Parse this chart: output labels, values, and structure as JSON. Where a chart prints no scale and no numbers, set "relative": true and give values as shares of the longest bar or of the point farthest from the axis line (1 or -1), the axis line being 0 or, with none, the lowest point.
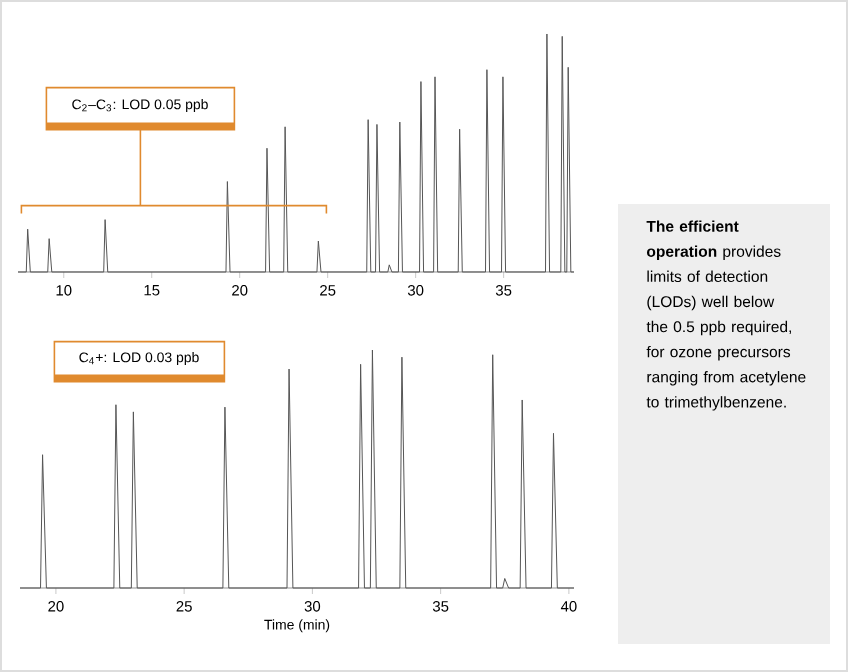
{
  "chart_data": [
    {
      "type": "line",
      "relative": true,
      "color": "#555555",
      "xlim": [
        7.4,
        39
      ],
      "xticks": [
        10,
        15,
        20,
        25,
        30,
        35
      ],
      "tick_labels": "x",
      "x": [
        7.4,
        7.87,
        7.95,
        8.1,
        9.09,
        9.17,
        9.32,
        12.27,
        12.35,
        12.5,
        19.22,
        19.3,
        19.45,
        21.47,
        21.55,
        21.7,
        22.5,
        22.58,
        22.73,
        24.39,
        24.47,
        24.62,
        27.22,
        27.3,
        27.45,
        27.72,
        27.8,
        27.95,
        28.42,
        28.5,
        28.65,
        29.02,
        29.1,
        29.25,
        30.22,
        30.3,
        30.45,
        31.02,
        31.1,
        31.25,
        32.42,
        32.5,
        32.65,
        33.97,
        34.05,
        34.2,
        34.88,
        34.96,
        35.11,
        37.38,
        37.46,
        37.61,
        38.25,
        38.33,
        38.48,
        38.59,
        38.67,
        38.82,
        39
      ],
      "values": [
        0,
        0,
        0.18,
        0,
        0,
        0.14,
        0,
        0,
        0.22,
        0,
        0,
        0.38,
        0,
        0,
        0.52,
        0,
        0,
        0.61,
        0,
        0,
        0.13,
        0,
        0,
        0.64,
        0,
        0,
        0.62,
        0,
        0,
        0.03,
        0,
        0,
        0.63,
        0,
        0,
        0.8,
        0,
        0,
        0.82,
        0,
        0,
        0.6,
        0,
        0,
        0.85,
        0,
        0,
        0.82,
        0,
        0,
        1,
        0,
        0,
        0.99,
        0,
        0,
        0.86,
        0,
        0
      ],
      "annotations": [
        "C$_{2}$–C$_{3}$: LOD 0.05 ppb"
      ]
    },
    {
      "type": "line",
      "relative": true,
      "color": "#555555",
      "xlim": [
        18.6,
        40.2
      ],
      "xticks": [
        20,
        25,
        30,
        35,
        40
      ],
      "tick_labels": "x",
      "xlabel": "Time (min)",
      "x": [
        18.6,
        19.4,
        19.48,
        19.63,
        22.26,
        22.34,
        22.49,
        22.94,
        23.02,
        23.17,
        26.51,
        26.59,
        26.74,
        29.01,
        29.09,
        29.24,
        31.8,
        31.88,
        32.03,
        32.26,
        32.34,
        32.49,
        33.41,
        33.49,
        33.64,
        36.95,
        37.03,
        37.18,
        37.42,
        37.5,
        37.65,
        38.1,
        38.18,
        38.33,
        39.32,
        39.4,
        39.55,
        40.2
      ],
      "values": [
        0,
        0,
        0.56,
        0,
        0,
        0.77,
        0,
        0,
        0.74,
        0,
        0,
        0.76,
        0,
        0,
        0.92,
        0,
        0,
        0.94,
        0,
        0,
        1,
        0,
        0,
        0.97,
        0,
        0,
        0.98,
        0,
        0,
        0.04,
        0,
        0,
        0.79,
        0,
        0,
        0.65,
        0,
        0
      ],
      "annotations": [
        "C$_{4}$+: LOD 0.03 ppb"
      ]
    },
    {
      "type": "other",
      "annotations": [
        "**The efficient operation** provides limits of detection (LODs) well below the 0.5 ppb required, for ozone precursors ranging from acetylene to trimethylbenzene."
      ]
    }
  ]
}
